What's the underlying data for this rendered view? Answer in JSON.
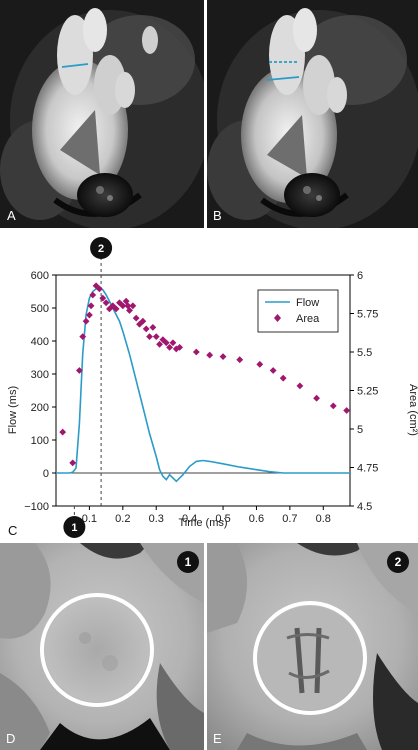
{
  "panels": {
    "a_label": "A",
    "b_label": "B",
    "c_label": "C",
    "d_label": "D",
    "e_label": "E",
    "d_badge": "1",
    "e_badge": "2"
  },
  "colors": {
    "flow": "#2b9bc8",
    "area": "#a0176e",
    "bg_dark": "#141414",
    "badge": "#111111"
  },
  "chart_data": {
    "type": "line",
    "title": "",
    "xlabel": "Time (ms)",
    "ylabel": "Flow (ms)",
    "y2label": "Area (cm²)",
    "xlim": [
      0.0,
      0.88
    ],
    "ylim": [
      -100,
      600
    ],
    "y2lim": [
      4.5,
      6.0
    ],
    "xticks": [
      "0.1",
      "0.2",
      "0.3",
      "0.4",
      "0.5",
      "0.6",
      "0.7",
      "0.8"
    ],
    "yticks": [
      "600",
      "500",
      "400",
      "300",
      "200",
      "100",
      "0",
      "−100"
    ],
    "y2ticks": [
      "6",
      "5.75",
      "5.5",
      "5.25",
      "5",
      "4.75",
      "4.5"
    ],
    "legend_position": "top-right",
    "markers": [
      {
        "label": "1",
        "x": 0.055
      },
      {
        "label": "2",
        "x": 0.135
      }
    ],
    "series": [
      {
        "name": "Flow",
        "axis": "left",
        "style": "line",
        "x": [
          0.0,
          0.04,
          0.05,
          0.06,
          0.07,
          0.08,
          0.09,
          0.1,
          0.11,
          0.12,
          0.13,
          0.14,
          0.15,
          0.16,
          0.17,
          0.18,
          0.19,
          0.2,
          0.22,
          0.24,
          0.26,
          0.28,
          0.3,
          0.31,
          0.32,
          0.33,
          0.34,
          0.35,
          0.36,
          0.38,
          0.4,
          0.42,
          0.44,
          0.46,
          0.5,
          0.55,
          0.6,
          0.64,
          0.68,
          0.72,
          0.76,
          0.8,
          0.84,
          0.88
        ],
        "y": [
          0,
          0,
          2,
          15,
          150,
          360,
          480,
          530,
          550,
          558,
          560,
          555,
          540,
          520,
          500,
          480,
          460,
          430,
          360,
          280,
          200,
          120,
          50,
          10,
          -10,
          -20,
          -5,
          -15,
          -25,
          -5,
          20,
          35,
          38,
          35,
          28,
          18,
          10,
          4,
          0,
          0,
          0,
          0,
          0,
          0
        ]
      },
      {
        "name": "Area",
        "axis": "right",
        "style": "diamond",
        "x": [
          0.02,
          0.05,
          0.07,
          0.08,
          0.09,
          0.1,
          0.105,
          0.11,
          0.12,
          0.13,
          0.14,
          0.15,
          0.16,
          0.17,
          0.18,
          0.19,
          0.2,
          0.21,
          0.215,
          0.22,
          0.23,
          0.24,
          0.25,
          0.26,
          0.27,
          0.28,
          0.29,
          0.3,
          0.31,
          0.32,
          0.33,
          0.34,
          0.35,
          0.36,
          0.37,
          0.42,
          0.46,
          0.5,
          0.55,
          0.61,
          0.65,
          0.68,
          0.73,
          0.78,
          0.83,
          0.87
        ],
        "y": [
          4.98,
          4.78,
          5.38,
          5.6,
          5.7,
          5.74,
          5.8,
          5.87,
          5.93,
          5.91,
          5.85,
          5.82,
          5.78,
          5.8,
          5.78,
          5.82,
          5.8,
          5.83,
          5.8,
          5.77,
          5.8,
          5.72,
          5.68,
          5.7,
          5.65,
          5.6,
          5.66,
          5.6,
          5.55,
          5.58,
          5.56,
          5.53,
          5.56,
          5.52,
          5.53,
          5.5,
          5.48,
          5.47,
          5.45,
          5.42,
          5.38,
          5.33,
          5.28,
          5.2,
          5.15,
          5.12
        ]
      }
    ]
  }
}
